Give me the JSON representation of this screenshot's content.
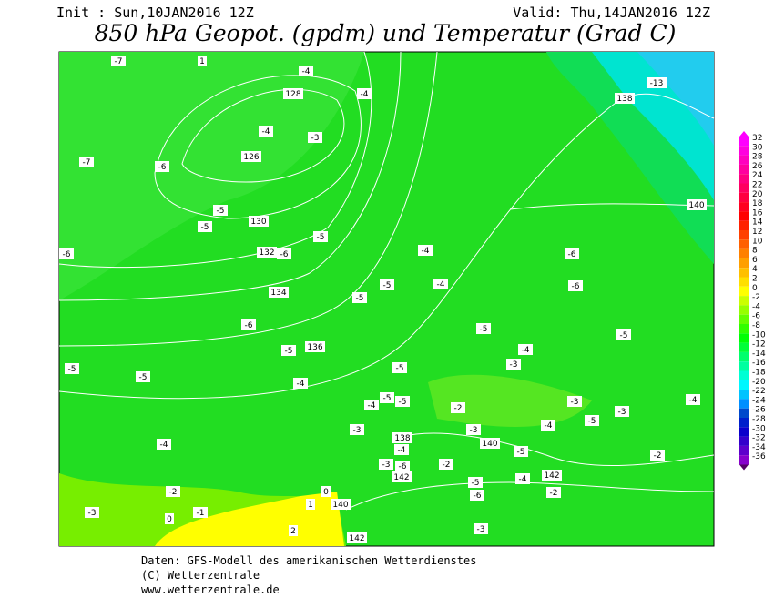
{
  "header": {
    "init": "Init : Sun,10JAN2016 12Z",
    "valid": "Valid: Thu,14JAN2016 12Z",
    "title": "850 hPa Geopot. (gpdm) und Temperatur (Grad C)"
  },
  "map": {
    "labels": [
      -7,
      1,
      -4,
      128,
      -4,
      -4,
      -3,
      126,
      -7,
      -6,
      -5,
      130,
      -5,
      -5,
      132,
      -6,
      -6,
      -4,
      -6,
      -5,
      -4,
      -6,
      134,
      -5,
      -6,
      -5,
      -5,
      -5,
      136,
      -4,
      -5,
      -3,
      -5,
      -5,
      -4,
      -5,
      -5,
      -4,
      -3,
      -2,
      -3,
      -5,
      -4,
      -4,
      -3,
      -3,
      138,
      140,
      -4,
      -4,
      -5,
      -2,
      -3,
      -6,
      -2,
      142,
      -5,
      -4,
      142,
      -2,
      -6,
      -2,
      0,
      1,
      140,
      -1,
      -3,
      0,
      -3,
      2,
      142,
      138,
      -13,
      140
    ]
  },
  "legend": {
    "labels": [
      32,
      30,
      28,
      26,
      24,
      22,
      20,
      18,
      16,
      14,
      12,
      10,
      8,
      6,
      4,
      2,
      0,
      -2,
      -4,
      -6,
      -8,
      -10,
      -12,
      -14,
      -16,
      -18,
      -20,
      -22,
      -24,
      -26,
      -28,
      -30,
      -32,
      -34,
      -36
    ]
  },
  "footer": {
    "lines": [
      "Daten: GFS-Modell des amerikanischen Wetterdienstes",
      "(C) Wetterzentrale",
      "www.wetterzentrale.de"
    ]
  }
}
